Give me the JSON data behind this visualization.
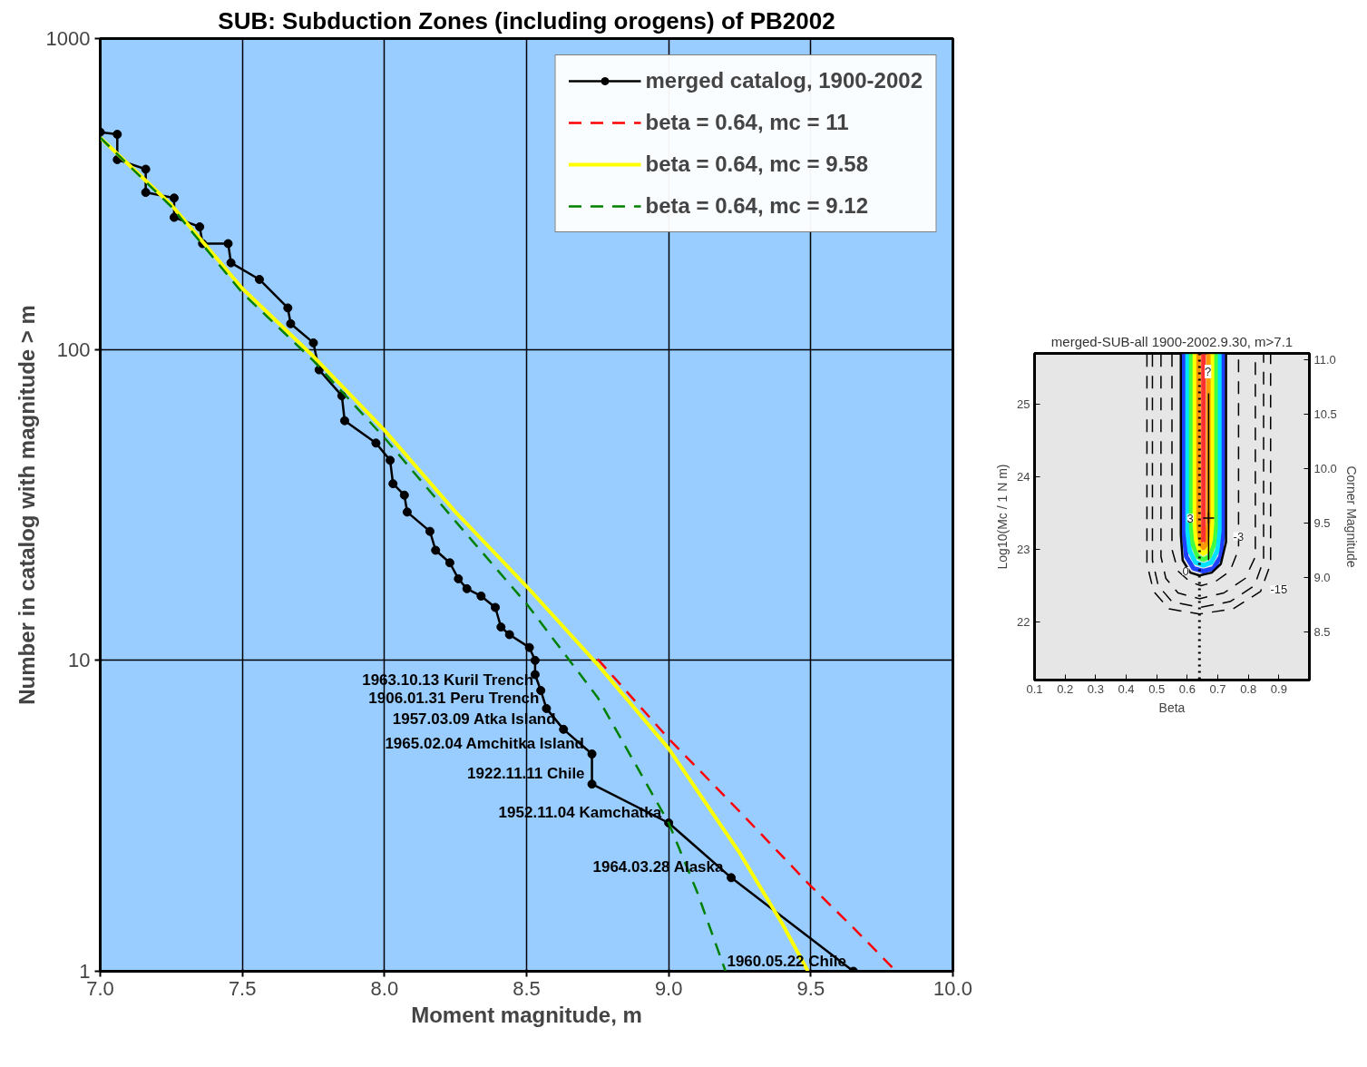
{
  "chart_data": [
    {
      "type": "line",
      "title": "SUB: Subduction Zones (including orogens) of PB2002",
      "xlabel": "Moment magnitude, m",
      "ylabel": "Number in catalog with magnitude > m",
      "log": "y",
      "grid": true,
      "legend": "top right",
      "xlim": [
        7,
        10
      ],
      "xticks": [
        {
          "value": 7,
          "label": "7.0"
        },
        {
          "value": 7.5,
          "label": "7.5"
        },
        {
          "value": 8,
          "label": "8.0"
        },
        {
          "value": 8.5,
          "label": "8.5"
        },
        {
          "value": 9,
          "label": "9.0"
        },
        {
          "value": 9.5,
          "label": "9.5"
        },
        {
          "value": 10,
          "label": "10.0"
        }
      ],
      "ylim": [
        1,
        1000
      ],
      "yticks": [
        1,
        10,
        100,
        1000
      ],
      "series": [
        {
          "name": "merged catalog, 1900-2002",
          "color": "#000000",
          "marker": "circle",
          "line_style": "solid",
          "x": [
            7.0,
            7.06,
            7.06,
            7.16,
            7.16,
            7.26,
            7.26,
            7.35,
            7.36,
            7.45,
            7.46,
            7.56,
            7.66,
            7.67,
            7.75,
            7.77,
            7.85,
            7.86,
            7.97,
            8.02,
            8.03,
            8.07,
            8.08,
            8.16,
            8.18,
            8.23,
            8.26,
            8.29,
            8.34,
            8.39,
            8.41,
            8.44,
            8.51,
            8.53,
            8.53,
            8.55,
            8.57,
            8.63,
            8.73,
            8.73,
            9.0,
            9.22,
            9.65
          ],
          "values": [
            500,
            492,
            408,
            380,
            320,
            307,
            266,
            248,
            219,
            219,
            190,
            168,
            136,
            121,
            105,
            86,
            71,
            59,
            50,
            44,
            37,
            34,
            30,
            26,
            22.6,
            20.6,
            18.3,
            17,
            16.1,
            14.8,
            12.8,
            12.1,
            11,
            10,
            9,
            8,
            7,
            6,
            5,
            4,
            3,
            2,
            1
          ]
        },
        {
          "name": "beta = 0.64, mc = 11",
          "color": "#ff0000",
          "marker": "none",
          "line_style": "dashed",
          "x": [
            8.75,
            9,
            9.25,
            9.5,
            9.65,
            9.8
          ],
          "values": [
            10.1,
            5.6,
            3.26,
            1.88,
            1.38,
            1.0
          ]
        },
        {
          "name": "beta = 0.64, mc = 9.58",
          "color": "#ffff00",
          "marker": "none",
          "line_style": "solid",
          "x": [
            7,
            7.25,
            7.5,
            7.75,
            8,
            8.25,
            8.5,
            8.75,
            9,
            9.25,
            9.4,
            9.49
          ],
          "values": [
            480,
            292,
            157,
            95,
            55,
            30,
            17.3,
            9.7,
            5.2,
            2.4,
            1.42,
            1.0
          ]
        },
        {
          "name": "beta = 0.64, mc = 9.12",
          "color": "#008000",
          "marker": "none",
          "line_style": "dashed",
          "x": [
            7,
            7.25,
            7.5,
            7.75,
            8,
            8.25,
            8.5,
            8.75,
            9,
            9.1,
            9.2
          ],
          "values": [
            480,
            288,
            152,
            92,
            52,
            28,
            15.2,
            7.6,
            3.0,
            1.8,
            1.0
          ]
        }
      ],
      "annotations": [
        {
          "text": "1963.10.13 Kuril Trench",
          "x": 8.55,
          "y": 8
        },
        {
          "text": "1906.01.31 Peru Trench",
          "x": 8.57,
          "y": 7
        },
        {
          "text": "1957.03.09 Atka Island",
          "x": 8.63,
          "y": 6
        },
        {
          "text": "1965.02.04 Amchitka Island",
          "x": 8.73,
          "y": 5
        },
        {
          "text": "1922.11.11 Chile",
          "x": 8.73,
          "y": 4
        },
        {
          "text": "1952.11.04 Kamchatka",
          "x": 9.0,
          "y": 3
        },
        {
          "text": "1964.03.28 Alaska",
          "x": 9.22,
          "y": 2
        },
        {
          "text": "1960.05.22 Chile",
          "x": 9.65,
          "y": 1
        }
      ]
    },
    {
      "type": "line",
      "title": "merged-SUB-all 1900-2002.9.30, m>7.1",
      "xlabel": "Beta",
      "ylabel": "Log10(Mc / 1 N m)",
      "y2label": "Corner Magnitude",
      "marker": "none",
      "xlim": [
        0.1,
        1.0
      ],
      "xticks": [
        0.1,
        0.2,
        0.3,
        0.4,
        0.5,
        0.6,
        0.7,
        0.8,
        0.9
      ],
      "ylim": [
        21.2,
        25.7
      ],
      "yticks": [
        22,
        23,
        24,
        25
      ],
      "y2lim": [
        8.06,
        11.06
      ],
      "y2ticks": [
        {
          "value": 8.5,
          "label": "8.5"
        },
        {
          "value": 9,
          "label": "9.0"
        },
        {
          "value": 9.5,
          "label": "9.5"
        },
        {
          "value": 10,
          "label": "10.0"
        },
        {
          "value": 10.5,
          "label": "10.5"
        },
        {
          "value": 11,
          "label": "11.0"
        }
      ],
      "series": [
        {
          "color": "#2040ff",
          "line_style": "solid",
          "x": [
            0.589,
            0.589,
            0.597,
            0.62,
            0.653,
            0.686,
            0.709,
            0.717,
            0.717
          ],
          "values": [
            25.69,
            23.2,
            22.9,
            22.74,
            22.7,
            22.74,
            22.9,
            23.2,
            25.69
          ]
        },
        {
          "color": "#00e0ff",
          "line_style": "solid",
          "x": [
            0.601,
            0.601,
            0.608,
            0.627,
            0.653,
            0.679,
            0.698,
            0.705,
            0.705
          ],
          "values": [
            25.69,
            23.25,
            22.98,
            22.82,
            22.78,
            22.82,
            22.98,
            23.25,
            25.69
          ]
        },
        {
          "color": "#40ff40",
          "line_style": "solid",
          "x": [
            0.613,
            0.613,
            0.619,
            0.634,
            0.653,
            0.672,
            0.687,
            0.693,
            0.693
          ],
          "values": [
            25.69,
            23.3,
            23.06,
            22.9,
            22.86,
            22.9,
            23.06,
            23.3,
            25.69
          ]
        },
        {
          "color": "#ffff00",
          "line_style": "solid",
          "x": [
            0.625,
            0.625,
            0.629,
            0.64,
            0.653,
            0.666,
            0.677,
            0.681,
            0.681
          ],
          "values": [
            25.69,
            23.35,
            23.14,
            22.98,
            22.94,
            22.98,
            23.14,
            23.35,
            25.69
          ]
        },
        {
          "color": "#ff9900",
          "line_style": "solid",
          "x": [
            0.637,
            0.637,
            0.64,
            0.646,
            0.653,
            0.66,
            0.666,
            0.669,
            0.669
          ],
          "values": [
            25.69,
            23.4,
            23.2,
            23.06,
            23.02,
            23.06,
            23.2,
            23.4,
            25.69
          ]
        },
        {
          "color": "#ff3030",
          "line_style": "solid",
          "x": [
            0.653,
            0.653
          ],
          "values": [
            25.69,
            23.1
          ]
        },
        {
          "color": "#000000",
          "line_style": "solid",
          "x": [
            0.579,
            0.579,
            0.585,
            0.61,
            0.64,
            0.68,
            0.71,
            0.727,
            0.727
          ],
          "values": [
            25.69,
            23.2,
            22.85,
            22.68,
            22.64,
            22.68,
            22.8,
            23.1,
            25.69
          ]
        },
        {
          "color": "#000000",
          "line_style": "dashed",
          "x": [
            0.55,
            0.55,
            0.57,
            0.61,
            0.645,
            0.69,
            0.74,
            0.768,
            0.768
          ],
          "values": [
            25.69,
            23.0,
            22.7,
            22.55,
            22.5,
            22.55,
            22.7,
            23.0,
            25.69
          ]
        },
        {
          "color": "#000000",
          "line_style": "dashed",
          "x": [
            0.514,
            0.514,
            0.53,
            0.57,
            0.64,
            0.72,
            0.79,
            0.823,
            0.823
          ],
          "values": [
            25.69,
            22.9,
            22.6,
            22.4,
            22.32,
            22.4,
            22.6,
            22.9,
            25.69
          ]
        },
        {
          "color": "#000000",
          "line_style": "dashed",
          "x": [
            0.486,
            0.486,
            0.505,
            0.55,
            0.64,
            0.74,
            0.82,
            0.85,
            0.85
          ],
          "values": [
            25.69,
            22.85,
            22.5,
            22.28,
            22.2,
            22.28,
            22.5,
            22.85,
            25.69
          ]
        },
        {
          "type": "scatter",
          "color": "#000000",
          "marker": "cross",
          "x": [
            0.67
          ],
          "values": [
            23.43
          ],
          "errors": [
            [
              22.85,
              25.15
            ]
          ]
        },
        {
          "color": "#000000",
          "line_style": "dashed",
          "x": [
            0.468,
            0.468,
            0.49,
            0.54,
            0.64,
            0.75,
            0.84,
            0.873,
            0.873
          ],
          "values": [
            25.69,
            22.8,
            22.42,
            22.18,
            22.11,
            22.18,
            22.42,
            22.8,
            25.69
          ]
        }
      ],
      "ref_lines": [
        {
          "axis": "x",
          "value": 0.64,
          "line_style": "dotted",
          "color": "#000000"
        }
      ],
      "annotations": [
        {
          "text": "0",
          "x": 0.595,
          "y": 22.7
        },
        {
          "text": "-3",
          "x": 0.768,
          "y": 23.18
        },
        {
          "text": "-15",
          "x": 0.9,
          "y": 22.45
        },
        {
          "text": "3",
          "x": 0.61,
          "y": 23.43
        },
        {
          "text": "?",
          "x": 0.668,
          "y": 25.45
        }
      ]
    }
  ]
}
